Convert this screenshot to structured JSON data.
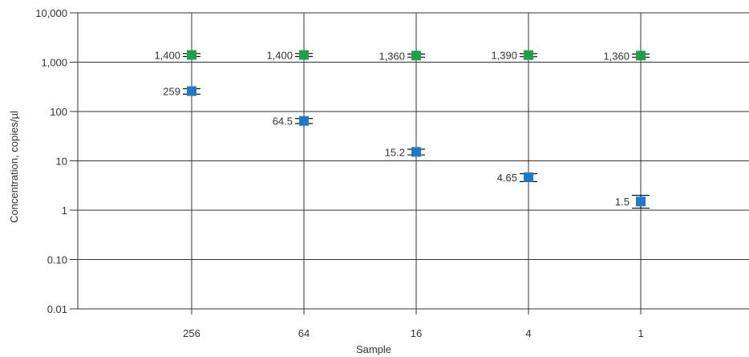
{
  "chart_data": {
    "type": "scatter",
    "title": "",
    "xlabel": "Sample",
    "ylabel": "Concentration, copies/µl",
    "y_scale": "log",
    "ylim": [
      0.01,
      10000
    ],
    "y_ticks": [
      {
        "value": 0.01,
        "label": "0.01"
      },
      {
        "value": 0.1,
        "label": "0.10"
      },
      {
        "value": 1,
        "label": "1"
      },
      {
        "value": 10,
        "label": "10"
      },
      {
        "value": 100,
        "label": "100"
      },
      {
        "value": 1000,
        "label": "1,000"
      },
      {
        "value": 10000,
        "label": "10,000"
      }
    ],
    "categories": [
      "256",
      "64",
      "16",
      "4",
      "1"
    ],
    "grid": true,
    "series": [
      {
        "color": "#1fa049",
        "values": [
          1400,
          1400,
          1360,
          1390,
          1360
        ],
        "labels": [
          "1,400",
          "1,400",
          "1,360",
          "1,390",
          "1,360"
        ],
        "err_low": [
          1300,
          1300,
          1260,
          1290,
          1260
        ],
        "err_high": [
          1500,
          1500,
          1460,
          1490,
          1460
        ]
      },
      {
        "color": "#1f78c8",
        "values": [
          259,
          64.5,
          15.2,
          4.65,
          1.5
        ],
        "labels": [
          "259",
          "64.5",
          "15.2",
          "4.65",
          "1.5"
        ],
        "err_low": [
          225,
          57,
          13.2,
          3.8,
          1.1
        ],
        "err_high": [
          290,
          72,
          17.2,
          5.5,
          2.0
        ]
      }
    ]
  }
}
